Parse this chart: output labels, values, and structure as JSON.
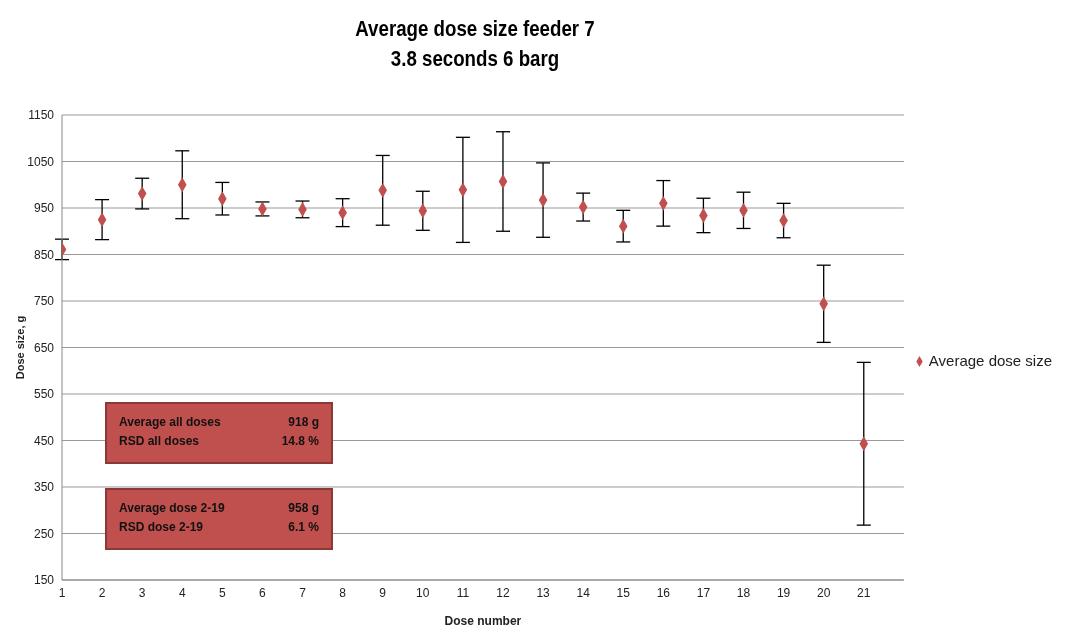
{
  "chart_data": {
    "type": "scatter",
    "title": "Average dose size feeder 7",
    "subtitle": "3.8 seconds 6 barg",
    "xlabel": "Dose number",
    "ylabel": "Dose size, g",
    "x": [
      1,
      2,
      3,
      4,
      5,
      6,
      7,
      8,
      9,
      10,
      11,
      12,
      13,
      14,
      15,
      16,
      17,
      18,
      19,
      20,
      21
    ],
    "series": [
      {
        "name": "Average dose size",
        "color": "#c0504d",
        "values": [
          861,
          925,
          981,
          1000,
          970,
          948,
          947,
          940,
          988,
          944,
          989,
          1007,
          967,
          952,
          911,
          960,
          934,
          945,
          923,
          744,
          443
        ],
        "errors": [
          22,
          43,
          33,
          73,
          35,
          15,
          18,
          30,
          75,
          42,
          113,
          107,
          80,
          30,
          34,
          49,
          37,
          39,
          37,
          83,
          175
        ]
      }
    ],
    "xlim": [
      1,
      22
    ],
    "xticks": [
      1,
      2,
      3,
      4,
      5,
      6,
      7,
      8,
      9,
      10,
      11,
      12,
      13,
      14,
      15,
      16,
      17,
      18,
      19,
      20,
      21
    ],
    "ylim": [
      150,
      1150
    ],
    "yticks": [
      150,
      250,
      350,
      450,
      550,
      650,
      750,
      850,
      950,
      1050,
      1150
    ],
    "grid": "y",
    "legend": "right",
    "marker": "diamond",
    "annotations": [
      "Average all doses",
      "918 g",
      "RSD all doses",
      "14.8 %",
      "Average dose 2-19",
      "958 g",
      "RSD dose 2-19",
      "6.1 %"
    ]
  }
}
